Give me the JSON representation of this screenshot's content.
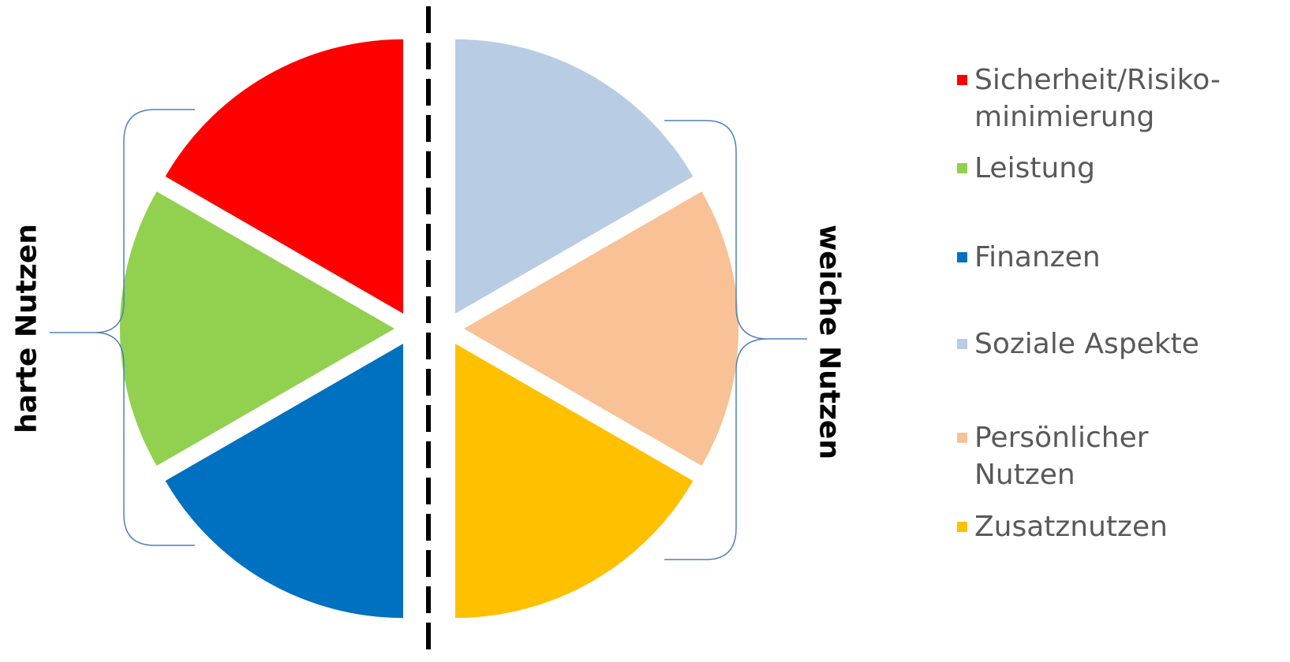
{
  "labels": {
    "hard": "harte Nutzen",
    "soft": "weiche Nutzen"
  },
  "segments": [
    {
      "key": "sicherheit",
      "color": "#ff0000"
    },
    {
      "key": "leistung",
      "color": "#92d050"
    },
    {
      "key": "finanzen",
      "color": "#0070c0"
    },
    {
      "key": "soziale",
      "color": "#b8cce4"
    },
    {
      "key": "persoenlich",
      "color": "#f8c196"
    },
    {
      "key": "zusatz",
      "color": "#ffc000"
    }
  ],
  "legend": [
    {
      "text": "Sicherheit/Risiko-\nminimierung",
      "color": "#ff0000"
    },
    {
      "text": "Leistung",
      "color": "#92d050"
    },
    {
      "text": "Finanzen",
      "color": "#0070c0"
    },
    {
      "text": "Soziale Aspekte",
      "color": "#b8cce4"
    },
    {
      "text": "Persönlicher\nNutzen",
      "color": "#f8c196"
    },
    {
      "text": "Zusatznutzen",
      "color": "#ffc000"
    }
  ],
  "colors": {
    "brace": "#4f81bd",
    "divider": "#000000"
  }
}
